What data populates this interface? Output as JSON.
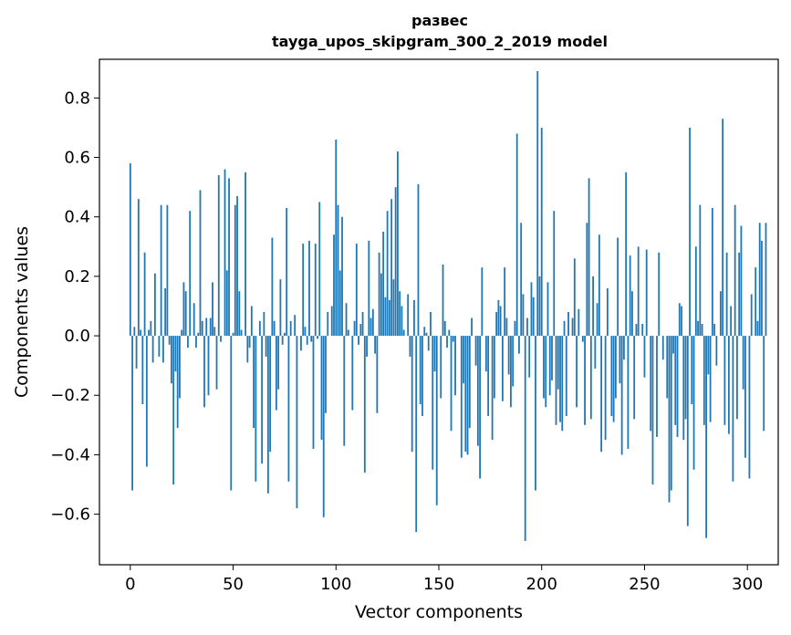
{
  "chart_data": {
    "type": "bar",
    "title": "развес",
    "subtitle": "tayga_upos_skipgram_300_2_2019 model",
    "xlabel": "Vector components",
    "ylabel": "Components values",
    "xlim": [
      -15,
      315
    ],
    "ylim": [
      -0.77,
      0.93
    ],
    "xticks": [
      0,
      50,
      100,
      150,
      200,
      250,
      300
    ],
    "yticks": [
      -0.6,
      -0.4,
      -0.2,
      0.0,
      0.2,
      0.4,
      0.6,
      0.8
    ],
    "xtick_labels": [
      "0",
      "50",
      "100",
      "150",
      "200",
      "250",
      "300"
    ],
    "ytick_labels": [
      "−0.6",
      "−0.4",
      "−0.2",
      "0.0",
      "0.2",
      "0.4",
      "0.6",
      "0.8"
    ],
    "grid": false,
    "bar_color": "#1f77b4",
    "values": [
      0.58,
      -0.52,
      0.03,
      -0.11,
      0.46,
      0.02,
      -0.23,
      0.28,
      -0.44,
      0.02,
      0.05,
      -0.09,
      0.21,
      0.0,
      -0.07,
      0.44,
      -0.09,
      0.16,
      0.44,
      -0.03,
      -0.16,
      -0.5,
      -0.12,
      -0.31,
      -0.21,
      0.02,
      0.18,
      0.15,
      -0.04,
      0.42,
      0.0,
      0.11,
      -0.04,
      0.01,
      0.49,
      0.05,
      -0.24,
      0.06,
      -0.2,
      0.06,
      0.18,
      0.03,
      -0.18,
      0.54,
      -0.02,
      0.0,
      0.56,
      0.22,
      0.53,
      -0.52,
      0.01,
      0.44,
      0.47,
      0.15,
      0.02,
      0.0,
      0.55,
      -0.09,
      -0.04,
      0.1,
      -0.31,
      -0.49,
      0.0,
      0.05,
      -0.43,
      0.08,
      -0.07,
      -0.53,
      -0.39,
      0.33,
      0.05,
      -0.25,
      -0.18,
      0.19,
      -0.03,
      0.01,
      0.43,
      -0.49,
      0.05,
      0.0,
      0.07,
      -0.58,
      0.0,
      -0.05,
      0.31,
      0.03,
      -0.03,
      0.32,
      -0.02,
      -0.38,
      0.31,
      -0.01,
      0.45,
      -0.35,
      -0.61,
      -0.26,
      0.08,
      0.0,
      0.1,
      0.34,
      0.66,
      0.44,
      0.22,
      0.4,
      -0.37,
      0.11,
      0.02,
      0.0,
      -0.25,
      0.05,
      0.31,
      -0.03,
      0.04,
      0.08,
      -0.46,
      -0.07,
      0.32,
      0.06,
      0.09,
      -0.06,
      -0.26,
      0.28,
      0.21,
      0.35,
      0.13,
      0.42,
      0.12,
      0.46,
      0.19,
      0.5,
      0.62,
      0.15,
      0.1,
      0.02,
      0.0,
      0.14,
      -0.07,
      -0.39,
      0.12,
      -0.66,
      0.51,
      -0.23,
      -0.27,
      0.03,
      0.01,
      -0.05,
      0.08,
      -0.45,
      -0.12,
      -0.57,
      0.0,
      -0.21,
      0.24,
      0.05,
      -0.04,
      0.02,
      -0.32,
      -0.02,
      -0.2,
      0.0,
      0.0,
      -0.41,
      -0.16,
      -0.39,
      -0.4,
      -0.31,
      0.06,
      0.0,
      -0.1,
      -0.37,
      -0.48,
      0.23,
      0.0,
      -0.12,
      -0.27,
      0.0,
      -0.35,
      -0.21,
      0.08,
      0.12,
      0.1,
      -0.22,
      0.23,
      0.06,
      -0.13,
      -0.24,
      -0.17,
      0.05,
      0.68,
      -0.06,
      0.38,
      0.14,
      -0.69,
      0.06,
      -0.14,
      0.18,
      0.13,
      -0.52,
      0.89,
      0.2,
      0.7,
      -0.21,
      -0.24,
      0.18,
      -0.2,
      -0.15,
      0.42,
      -0.3,
      -0.18,
      -0.29,
      -0.32,
      0.05,
      -0.27,
      0.08,
      0.0,
      0.06,
      0.26,
      -0.24,
      0.09,
      0.0,
      -0.02,
      -0.3,
      0.38,
      0.53,
      -0.28,
      0.2,
      -0.11,
      0.11,
      0.34,
      -0.39,
      0.0,
      -0.35,
      0.16,
      0.0,
      -0.27,
      -0.29,
      -0.21,
      0.33,
      -0.16,
      -0.4,
      -0.08,
      0.55,
      -0.38,
      0.27,
      0.15,
      -0.28,
      0.04,
      0.3,
      0.0,
      0.04,
      -0.14,
      0.29,
      0.0,
      -0.32,
      -0.5,
      0.0,
      -0.34,
      0.28,
      0.0,
      -0.08,
      0.0,
      -0.21,
      -0.56,
      -0.52,
      -0.06,
      -0.3,
      -0.34,
      0.11,
      0.1,
      -0.35,
      -0.28,
      -0.64,
      0.7,
      -0.23,
      -0.45,
      0.3,
      0.05,
      0.44,
      0.04,
      -0.3,
      -0.68,
      -0.13,
      -0.29,
      0.43,
      0.04,
      -0.1,
      0.0,
      0.15,
      0.73,
      -0.3,
      0.28,
      -0.33,
      0.1,
      -0.49,
      0.44,
      -0.28,
      0.28,
      0.37,
      -0.18,
      -0.41,
      0.0,
      -0.48,
      0.14,
      0.0,
      0.23,
      0.05,
      0.38,
      0.32,
      -0.32,
      0.38
    ]
  }
}
